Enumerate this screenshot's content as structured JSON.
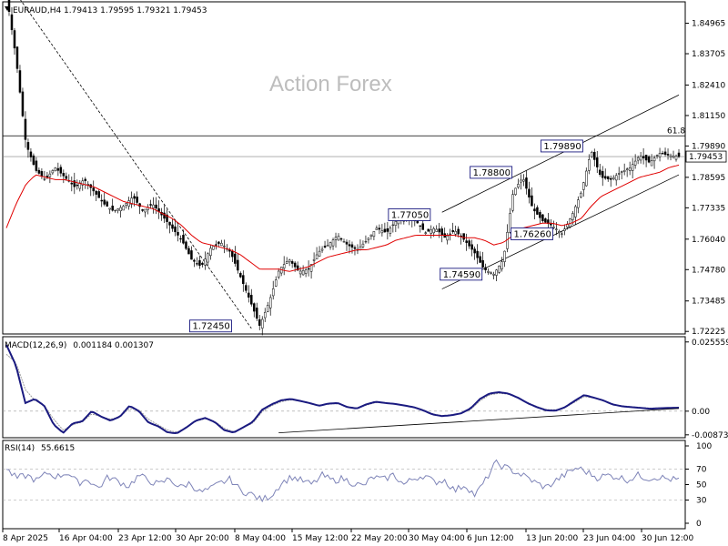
{
  "header": {
    "symbol_line": "EURAUD,H4  1.79413 1.79595 1.79321 1.79453",
    "watermark": "Action Forex"
  },
  "colors": {
    "candles": "#000000",
    "ma": "#e00000",
    "macd": "#1a1a80",
    "signal": "#9b9b9b",
    "channel": "#000000",
    "price_line": "#808080"
  },
  "chart_data": [
    {
      "type": "line",
      "title": "EURAUD,H4",
      "price_header": "1.79413 1.79595 1.79321 1.79453",
      "current_price": 1.79453,
      "current_price_label": "1.79453",
      "ylim": [
        1.7212,
        1.8585
      ],
      "y_ticks": [
        "1.84965",
        "1.83705",
        "1.82410",
        "1.81150",
        "1.79890",
        "1.78595",
        "1.77335",
        "1.76040",
        "1.74780",
        "1.73485",
        "1.72225"
      ],
      "x_ticks": [
        "8 Apr 2025",
        "16 Apr 04:00",
        "23 Apr 12:00",
        "30 Apr 20:00",
        "8 May 04:00",
        "15 May 12:00",
        "22 May 20:00",
        "30 May 04:00",
        "6 Jun 12:00",
        "13 Jun 20:00",
        "23 Jun 04:00",
        "30 Jun 12:00"
      ],
      "fib_level": {
        "label": "61.8",
        "value": 1.8031
      },
      "annotations": [
        {
          "label": "1.72450",
          "value": 1.7245
        },
        {
          "label": "1.74590",
          "value": 1.7459
        },
        {
          "label": "1.77050",
          "value": 1.7705
        },
        {
          "label": "1.76260",
          "value": 1.7626
        },
        {
          "label": "1.78800",
          "value": 1.788
        },
        {
          "label": "1.79890",
          "value": 1.7989
        }
      ],
      "close_anchor_values": [
        1.862,
        1.835,
        1.8,
        1.789,
        1.785,
        1.79,
        1.786,
        1.782,
        1.785,
        1.78,
        1.775,
        1.772,
        1.774,
        1.778,
        1.772,
        1.775,
        1.77,
        1.765,
        1.76,
        1.752,
        1.749,
        1.757,
        1.759,
        1.755,
        1.745,
        1.735,
        1.7245,
        1.735,
        1.748,
        1.752,
        1.747,
        1.748,
        1.755,
        1.758,
        1.762,
        1.758,
        1.756,
        1.76,
        1.765,
        1.763,
        1.768,
        1.77,
        1.768,
        1.763,
        1.765,
        1.761,
        1.764,
        1.76,
        1.755,
        1.748,
        1.7459,
        1.752,
        1.78,
        1.786,
        1.773,
        1.768,
        1.766,
        1.7626,
        1.77,
        1.78,
        1.797,
        1.786,
        1.785,
        1.788,
        1.79,
        1.795,
        1.792,
        1.796,
        1.795,
        1.79453
      ],
      "ma_anchor_values": [
        1.765,
        1.775,
        1.783,
        1.787,
        1.786,
        1.785,
        1.785,
        1.784,
        1.783,
        1.782,
        1.78,
        1.778,
        1.776,
        1.775,
        1.774,
        1.773,
        1.771,
        1.769,
        1.766,
        1.762,
        1.759,
        1.758,
        1.757,
        1.756,
        1.754,
        1.751,
        1.748,
        1.748,
        1.748,
        1.747,
        1.748,
        1.749,
        1.751,
        1.753,
        1.754,
        1.755,
        1.756,
        1.756,
        1.757,
        1.758,
        1.76,
        1.761,
        1.762,
        1.762,
        1.762,
        1.762,
        1.762,
        1.761,
        1.761,
        1.76,
        1.758,
        1.759,
        1.762,
        1.765,
        1.766,
        1.767,
        1.767,
        1.766,
        1.767,
        1.769,
        1.774,
        1.778,
        1.78,
        1.782,
        1.784,
        1.786,
        1.787,
        1.788,
        1.79,
        1.791
      ]
    },
    {
      "type": "line",
      "title": "MACD(12,26,9)",
      "header_values": "0.001184 0.001307",
      "ylim": [
        -0.0098,
        0.0275
      ],
      "y_ticks": [
        "0.025559",
        "0.00",
        "-0.008731"
      ],
      "macd_anchor_values": [
        0.0245,
        0.017,
        0.003,
        0.0045,
        0.002,
        -0.005,
        -0.008,
        -0.0045,
        -0.0038,
        0.0,
        -0.002,
        -0.0035,
        -0.002,
        0.002,
        0.0,
        -0.0042,
        -0.0055,
        -0.0078,
        -0.0082,
        -0.006,
        -0.0035,
        -0.0025,
        -0.004,
        -0.007,
        -0.0079,
        -0.006,
        -0.004,
        0.0005,
        0.0025,
        0.004,
        0.0045,
        0.0038,
        0.003,
        0.002,
        0.0028,
        0.003,
        0.0015,
        0.001,
        0.0025,
        0.0035,
        0.003,
        0.0027,
        0.0021,
        0.0015,
        0.0003,
        -0.0012,
        -0.0018,
        -0.0015,
        -0.0008,
        0.001,
        0.0045,
        0.0065,
        0.007,
        0.0065,
        0.005,
        0.003,
        0.0015,
        0.0003,
        0.0002,
        0.0015,
        0.0038,
        0.006,
        0.005,
        0.004,
        0.0025,
        0.0018,
        0.0015,
        0.0012,
        0.0009,
        0.0011,
        0.0012,
        0.0013
      ],
      "signal_anchor_values": [
        0.021,
        0.018,
        0.008,
        0.004,
        0.002,
        -0.003,
        -0.007,
        -0.005,
        -0.004,
        -0.001,
        -0.002,
        -0.003,
        -0.002,
        0.001,
        0.0005,
        -0.003,
        -0.005,
        -0.007,
        -0.0078,
        -0.006,
        -0.0037,
        -0.0028,
        -0.0038,
        -0.0063,
        -0.0076,
        -0.006,
        -0.0045,
        -0.0002,
        0.002,
        0.0035,
        0.0042,
        0.0037,
        0.003,
        0.0022,
        0.0026,
        0.0028,
        0.0017,
        0.0012,
        0.0022,
        0.0032,
        0.003,
        0.0027,
        0.0022,
        0.0016,
        0.0005,
        -0.001,
        -0.0016,
        -0.0014,
        -0.0008,
        0.0005,
        0.0038,
        0.006,
        0.0066,
        0.0063,
        0.005,
        0.0032,
        0.0017,
        0.0006,
        0.0005,
        0.0014,
        0.0033,
        0.0054,
        0.0049,
        0.0039,
        0.0026,
        0.0019,
        0.0016,
        0.0013,
        0.0011,
        0.0012,
        0.0012,
        0.0013
      ]
    },
    {
      "type": "line",
      "title": "RSI(14)",
      "header_value": "55.6615",
      "ylim": [
        0,
        100
      ],
      "y_ticks": [
        "100",
        "70",
        "50",
        "30",
        "0"
      ],
      "levels": [
        70,
        30
      ],
      "rsi_anchor_values": [
        70,
        58,
        62,
        55,
        65,
        60,
        66,
        52,
        57,
        45,
        60,
        54,
        48,
        62,
        55,
        50,
        58,
        46,
        52,
        40,
        44,
        52,
        57,
        42,
        38,
        30,
        36,
        52,
        60,
        55,
        50,
        62,
        55,
        58,
        52,
        48,
        60,
        56,
        63,
        50,
        58,
        62,
        53,
        56,
        42,
        50,
        36,
        55,
        78,
        72,
        66,
        60,
        52,
        46,
        56,
        64,
        72,
        66,
        59,
        62,
        60,
        56,
        62,
        58,
        60,
        57,
        56
      ],
      "rsi_current": 55.6615
    }
  ]
}
